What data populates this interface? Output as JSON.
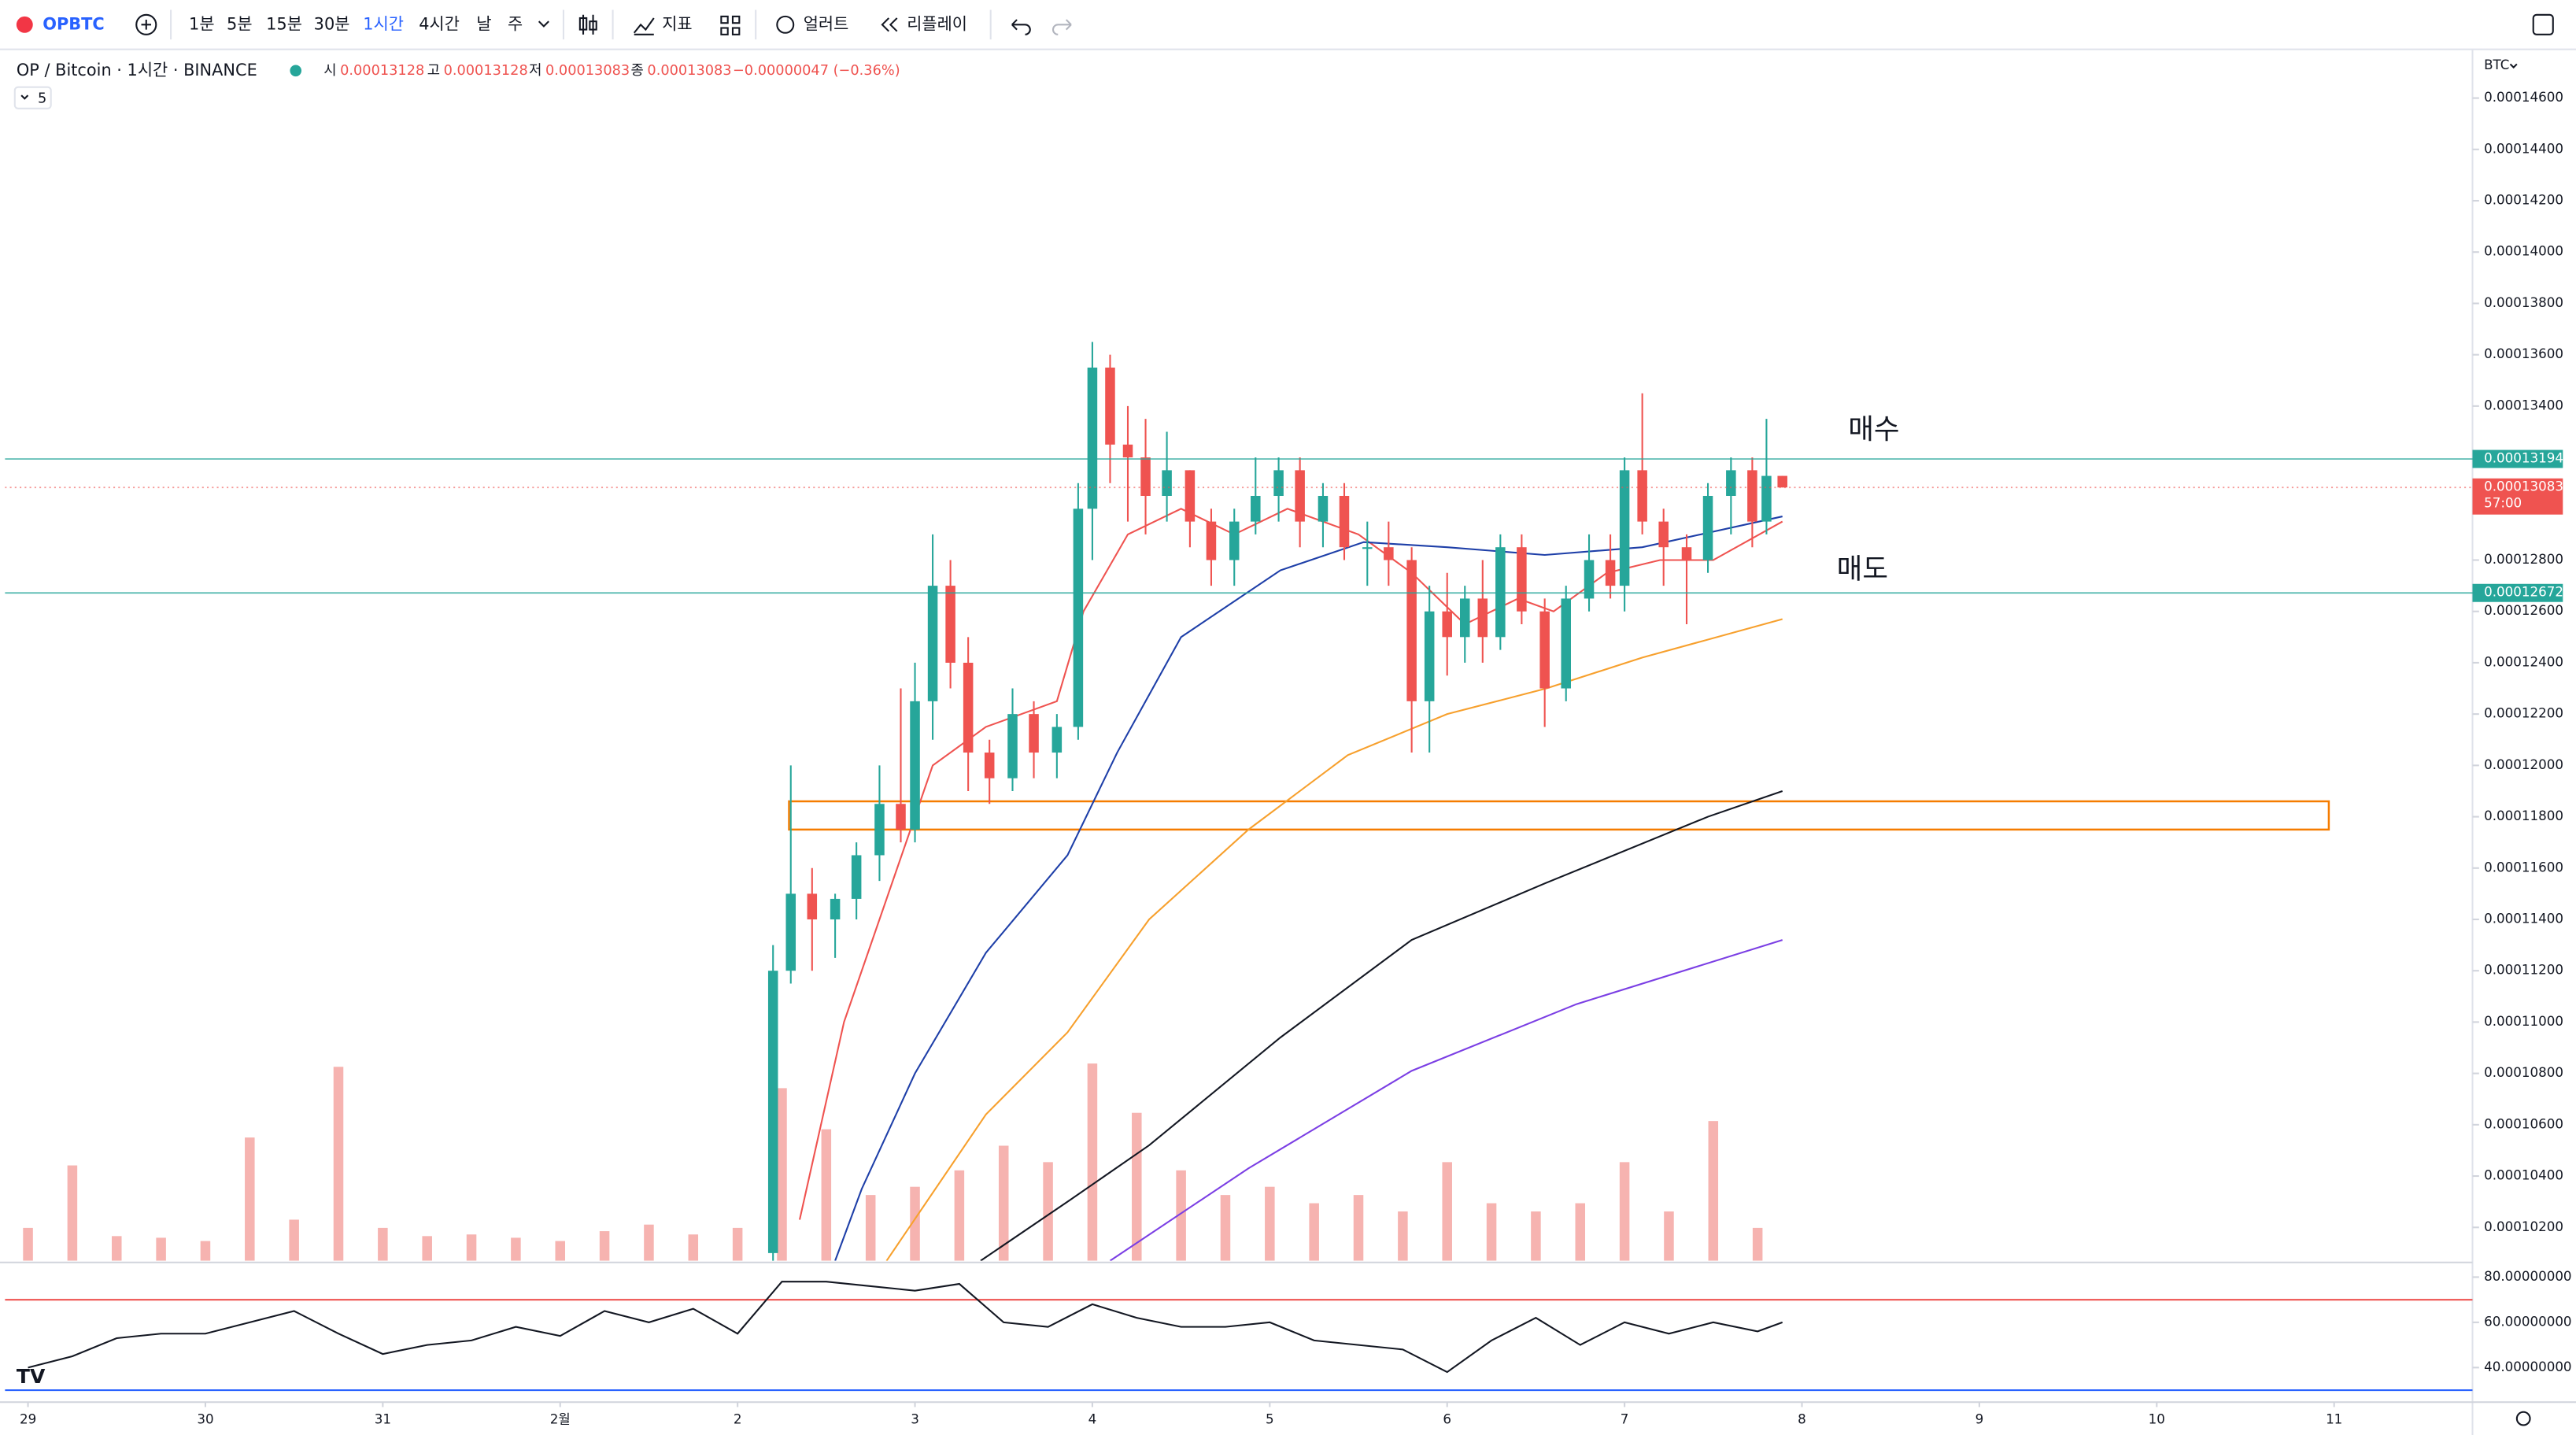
{
  "toolbar": {
    "symbol": "OPBTC",
    "intervals": [
      "1분",
      "5분",
      "15분",
      "30분",
      "1시간",
      "4시간",
      "날",
      "주"
    ],
    "indicators": "지표",
    "alert": "얼러트",
    "replay": "리플레이"
  },
  "legend": {
    "title": "OP / Bitcoin · 1시간 · BINANCE",
    "ohlc": [
      {
        "label": "시",
        "value": 0.00013128
      },
      {
        "label": "고",
        "value": 0.00013128
      },
      {
        "label": "저",
        "value": 0.00013083
      },
      {
        "label": "종",
        "value": 0.00013083
      }
    ],
    "change": "−0.00000047 (−0.36%)",
    "collapsed": 5
  },
  "currency": "BTC",
  "annotations": [
    "매수",
    "매도"
  ],
  "chart_data": [
    {
      "type": "candlestick",
      "xlim": [
        -0.13,
        13.78
      ],
      "xticks": [
        {
          "value": 0,
          "label": "29"
        },
        {
          "value": 1,
          "label": "30"
        },
        {
          "value": 2,
          "label": "31"
        },
        {
          "value": 3,
          "label": "2월"
        },
        {
          "value": 4,
          "label": "2"
        },
        {
          "value": 5,
          "label": "3"
        },
        {
          "value": 6,
          "label": "4"
        },
        {
          "value": 7,
          "label": "5"
        },
        {
          "value": 8,
          "label": "6"
        },
        {
          "value": 9,
          "label": "7"
        },
        {
          "value": 10,
          "label": "8"
        },
        {
          "value": 11,
          "label": "9"
        },
        {
          "value": 12,
          "label": "10"
        },
        {
          "value": 13,
          "label": "11"
        }
      ],
      "ylim": [
        0.0001007,
        0.0001479
      ],
      "yticks": [
        {
          "value": 0.000102,
          "label": "0.00010200"
        },
        {
          "value": 0.000104,
          "label": "0.00010400"
        },
        {
          "value": 0.000106,
          "label": "0.00010600"
        },
        {
          "value": 0.000108,
          "label": "0.00010800"
        },
        {
          "value": 0.00011,
          "label": "0.00011000"
        },
        {
          "value": 0.000112,
          "label": "0.00011200"
        },
        {
          "value": 0.000114,
          "label": "0.00011400"
        },
        {
          "value": 0.000116,
          "label": "0.00011600"
        },
        {
          "value": 0.000118,
          "label": "0.00011800"
        },
        {
          "value": 0.00012,
          "label": "0.00012000"
        },
        {
          "value": 0.000122,
          "label": "0.00012200"
        },
        {
          "value": 0.000124,
          "label": "0.00012400"
        },
        {
          "value": 0.000126,
          "label": "0.00012600"
        },
        {
          "value": 0.000128,
          "label": "0.00012800"
        },
        {
          "value": 0.00013,
          "label": "0.00013000"
        },
        {
          "value": 0.000132,
          "label": "0.00013200"
        },
        {
          "value": 0.000134,
          "label": "0.00013400"
        },
        {
          "value": 0.000136,
          "label": "0.00013600"
        },
        {
          "value": 0.000138,
          "label": "0.00013800"
        },
        {
          "value": 0.00014,
          "label": "0.00014000"
        },
        {
          "value": 0.000142,
          "label": "0.00014200"
        },
        {
          "value": 0.000144,
          "label": "0.00014400"
        },
        {
          "value": 0.000146,
          "label": "0.00014600"
        }
      ],
      "grid": false,
      "up_color": "#26a69a",
      "down_color": "#ef5350",
      "x": [
        4.2,
        4.3,
        4.42,
        4.55,
        4.67,
        4.8,
        4.92,
        5.0,
        5.1,
        5.2,
        5.3,
        5.42,
        5.55,
        5.67,
        5.8,
        5.92,
        6.0,
        6.1,
        6.2,
        6.3,
        6.42,
        6.55,
        6.67,
        6.8,
        6.92,
        7.05,
        7.17,
        7.3,
        7.42,
        7.55,
        7.67,
        7.8,
        7.9,
        8.0,
        8.1,
        8.2,
        8.3,
        8.42,
        8.55,
        8.67,
        8.8,
        8.92,
        9.0,
        9.1,
        9.22,
        9.35,
        9.47,
        9.6,
        9.72,
        9.8,
        9.89
      ],
      "open": [
        0.000101,
        0.000112,
        0.000115,
        0.000114,
        0.0001148,
        0.0001165,
        0.0001185,
        0.0001175,
        0.0001225,
        0.000127,
        0.000124,
        0.0001205,
        0.0001195,
        0.000122,
        0.0001205,
        0.0001215,
        0.00013,
        0.0001355,
        0.0001325,
        0.000132,
        0.0001305,
        0.0001315,
        0.0001295,
        0.000128,
        0.0001295,
        0.0001305,
        0.0001315,
        0.0001295,
        0.0001305,
        0.0001285,
        0.0001285,
        0.000128,
        0.0001225,
        0.000126,
        0.000125,
        0.0001265,
        0.000125,
        0.0001285,
        0.000126,
        0.000123,
        0.0001265,
        0.000128,
        0.000127,
        0.0001315,
        0.0001295,
        0.0001285,
        0.000128,
        0.0001305,
        0.0001315,
        0.0001295,
        0.00013128
      ],
      "high": [
        0.000113,
        0.00012,
        0.000116,
        0.000115,
        0.000117,
        0.00012,
        0.000123,
        0.000124,
        0.000129,
        0.000128,
        0.000125,
        0.000121,
        0.000123,
        0.0001225,
        0.000122,
        0.000131,
        0.0001365,
        0.000136,
        0.000134,
        0.0001335,
        0.000133,
        0.0001315,
        0.00013,
        0.00013,
        0.000132,
        0.000132,
        0.000132,
        0.000131,
        0.000131,
        0.0001295,
        0.0001295,
        0.0001285,
        0.000127,
        0.0001275,
        0.000127,
        0.000128,
        0.000129,
        0.000129,
        0.0001265,
        0.000127,
        0.000129,
        0.000129,
        0.000132,
        0.0001345,
        0.00013,
        0.000129,
        0.000131,
        0.000132,
        0.000132,
        0.0001335,
        0.00013128
      ],
      "low": [
        0.0001005,
        0.0001115,
        0.000112,
        0.0001125,
        0.000114,
        0.0001155,
        0.000117,
        0.000117,
        0.000121,
        0.000123,
        0.000119,
        0.0001185,
        0.000119,
        0.0001195,
        0.0001195,
        0.000121,
        0.000128,
        0.000131,
        0.0001295,
        0.000129,
        0.0001295,
        0.0001285,
        0.000127,
        0.000127,
        0.000129,
        0.0001295,
        0.0001285,
        0.0001285,
        0.000128,
        0.000127,
        0.000127,
        0.0001205,
        0.0001205,
        0.0001235,
        0.000124,
        0.000124,
        0.0001245,
        0.0001255,
        0.0001215,
        0.0001225,
        0.000126,
        0.0001265,
        0.000126,
        0.000129,
        0.000127,
        0.0001255,
        0.0001275,
        0.000129,
        0.0001285,
        0.000129,
        0.00013083
      ],
      "close": [
        0.000112,
        0.000115,
        0.000114,
        0.0001148,
        0.0001165,
        0.0001185,
        0.0001175,
        0.0001225,
        0.000127,
        0.000124,
        0.0001205,
        0.0001195,
        0.000122,
        0.0001205,
        0.0001215,
        0.00013,
        0.0001355,
        0.0001325,
        0.000132,
        0.0001305,
        0.0001315,
        0.0001295,
        0.000128,
        0.0001295,
        0.0001305,
        0.0001315,
        0.0001295,
        0.0001305,
        0.0001285,
        0.0001285,
        0.000128,
        0.0001225,
        0.000126,
        0.000125,
        0.0001265,
        0.000125,
        0.0001285,
        0.000126,
        0.000123,
        0.0001265,
        0.000128,
        0.000127,
        0.0001315,
        0.0001295,
        0.0001285,
        0.000128,
        0.0001305,
        0.0001315,
        0.0001295,
        0.00013128,
        0.00013083
      ],
      "overlays": [
        {
          "color": "#ef5350",
          "x": [
            4.35,
            4.6,
            4.9,
            5.1,
            5.4,
            5.8,
            5.95,
            6.2,
            6.5,
            6.8,
            7.1,
            7.5,
            7.8,
            8.1,
            8.4,
            8.6,
            8.9,
            9.2,
            9.5,
            9.89
          ],
          "values": [
            0.0001023,
            0.00011,
            0.000116,
            0.00012,
            0.0001215,
            0.0001225,
            0.000126,
            0.000129,
            0.00013,
            0.000129,
            0.00013,
            0.000129,
            0.0001275,
            0.0001255,
            0.0001265,
            0.000126,
            0.0001275,
            0.000128,
            0.000128,
            0.0001295
          ]
        },
        {
          "color": "#1e3fa8",
          "x": [
            4.55,
            4.7,
            5.0,
            5.4,
            5.86,
            6.14,
            6.5,
            7.06,
            7.53,
            8.0,
            8.55,
            9.1,
            9.89
          ],
          "values": [
            0.0001007,
            0.0001035,
            0.000108,
            0.0001127,
            0.0001165,
            0.0001205,
            0.000125,
            0.0001276,
            0.0001287,
            0.0001285,
            0.0001282,
            0.0001285,
            0.0001297
          ]
        },
        {
          "color": "#f7a02d",
          "x": [
            4.84,
            5.4,
            5.86,
            6.32,
            6.88,
            7.44,
            8.0,
            8.56,
            9.1,
            9.89
          ],
          "values": [
            0.0001007,
            0.0001064,
            0.0001096,
            0.000114,
            0.0001175,
            0.0001204,
            0.000122,
            0.000123,
            0.0001242,
            0.0001257
          ]
        },
        {
          "color": "#131722",
          "x": [
            5.37,
            5.86,
            6.32,
            7.06,
            7.8,
            8.55,
            9.47,
            9.89
          ],
          "values": [
            0.0001007,
            0.000103,
            0.0001052,
            0.0001094,
            0.0001132,
            0.0001154,
            0.000118,
            0.000119
          ]
        },
        {
          "color": "#7b3fe4",
          "x": [
            6.1,
            6.88,
            7.8,
            8.73,
            9.89
          ],
          "values": [
            0.0001007,
            0.0001043,
            0.0001081,
            0.0001107,
            0.0001132
          ]
        }
      ],
      "zone": {
        "color": "#f57c00",
        "x": [
          4.29,
          12.97
        ],
        "y": [
          0.0001175,
          0.0001186
        ]
      },
      "price_lines": [
        {
          "value": 0.00013194,
          "color": "#26a69a"
        },
        {
          "value": 0.00013083,
          "color": "#ef5350",
          "countdown": "57:00"
        },
        {
          "value": 0.00012672,
          "color": "#26a69a"
        }
      ],
      "volume": {
        "color": "#f6b3b0",
        "vlim": [
          0,
          130
        ],
        "x": [
          0,
          0.25,
          0.5,
          0.75,
          1,
          1.25,
          1.5,
          1.75,
          2,
          2.25,
          2.5,
          2.75,
          3,
          3.25,
          3.5,
          3.75,
          4,
          4.25,
          4.5,
          4.75,
          5,
          5.25,
          5.5,
          5.75,
          6,
          6.25,
          6.5,
          6.75,
          7,
          7.25,
          7.5,
          7.75,
          8,
          8.25,
          8.5,
          8.75,
          9,
          9.25,
          9.5,
          9.75
        ],
        "values": [
          20,
          58,
          15,
          14,
          12,
          75,
          25,
          118,
          20,
          15,
          16,
          14,
          12,
          18,
          22,
          16,
          20,
          105,
          80,
          40,
          45,
          55,
          70,
          60,
          120,
          90,
          55,
          40,
          45,
          35,
          40,
          30,
          60,
          35,
          30,
          35,
          60,
          30,
          85,
          20
        ]
      }
    },
    {
      "type": "line",
      "xlim": [
        -0.13,
        13.78
      ],
      "ylim": [
        26.9,
        86.5
      ],
      "yticks": [
        {
          "value": 80,
          "label": "80.00000000"
        },
        {
          "value": 60,
          "label": "60.00000000"
        },
        {
          "value": 40,
          "label": "40.00000000"
        }
      ],
      "color": "#131722",
      "levels": [
        {
          "value": 70,
          "color": "#ef5350"
        },
        {
          "value": 30,
          "color": "#2962ff"
        }
      ],
      "x": [
        0,
        0.25,
        0.5,
        0.75,
        1,
        1.25,
        1.5,
        1.75,
        2,
        2.25,
        2.5,
        2.75,
        3,
        3.25,
        3.5,
        3.75,
        4,
        4.25,
        4.5,
        4.75,
        5,
        5.25,
        5.5,
        5.75,
        6,
        6.25,
        6.5,
        6.75,
        7,
        7.25,
        7.5,
        7.75,
        8,
        8.25,
        8.5,
        8.75,
        9,
        9.25,
        9.5,
        9.75,
        9.89
      ],
      "values": [
        40,
        45,
        53,
        55,
        55,
        60,
        65,
        55,
        46,
        50,
        52,
        58,
        54,
        65,
        60,
        66,
        55,
        78,
        78,
        76,
        74,
        77,
        60,
        58,
        68,
        62,
        58,
        58,
        60,
        52,
        50,
        48,
        38,
        52,
        62,
        50,
        60,
        55,
        60,
        56,
        60
      ]
    }
  ]
}
